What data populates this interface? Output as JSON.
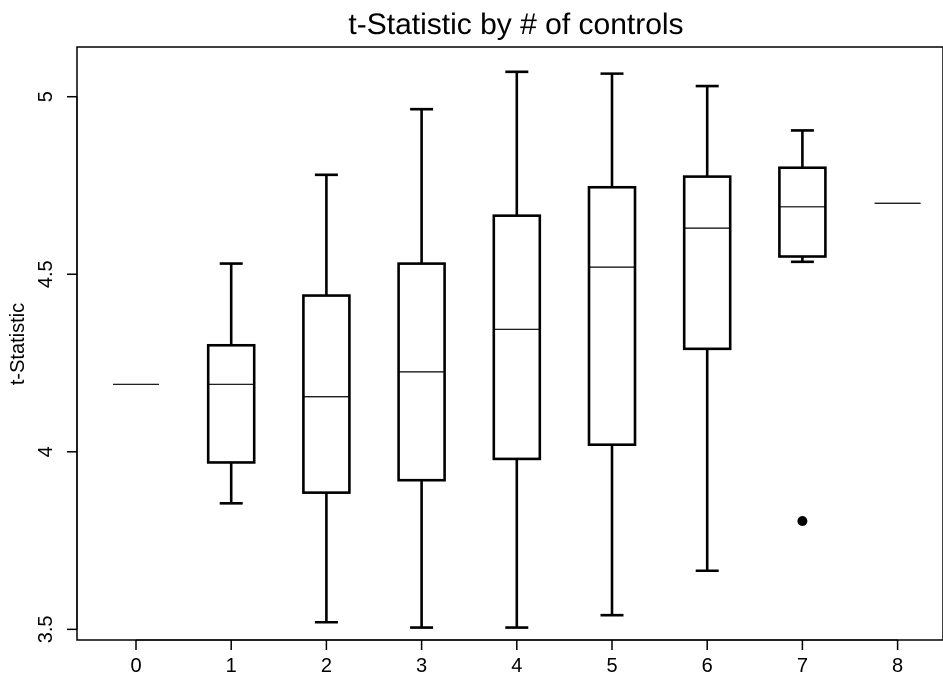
{
  "chart_data": {
    "type": "box",
    "title": "t-Statistic by # of controls",
    "xlabel": "",
    "ylabel": "t-Statistic",
    "categories": [
      "0",
      "1",
      "2",
      "3",
      "4",
      "5",
      "6",
      "7",
      "8"
    ],
    "ylim": [
      3.47,
      5.14
    ],
    "yticks": [
      3.5,
      4,
      4.5,
      5
    ],
    "ytick_labels": [
      "3.5",
      "4",
      "4.5",
      "5"
    ],
    "grid": false,
    "legend": "none",
    "boxes": [
      {
        "category": "0",
        "min": 4.19,
        "q1": 4.19,
        "median": 4.19,
        "q3": 4.19,
        "max": 4.19,
        "outliers": []
      },
      {
        "category": "1",
        "min": 3.855,
        "q1": 3.97,
        "median": 4.19,
        "q3": 4.3,
        "max": 4.53,
        "outliers": []
      },
      {
        "category": "2",
        "min": 3.52,
        "q1": 3.885,
        "median": 4.155,
        "q3": 4.44,
        "max": 4.78,
        "outliers": []
      },
      {
        "category": "3",
        "min": 3.505,
        "q1": 3.92,
        "median": 4.225,
        "q3": 4.53,
        "max": 4.965,
        "outliers": []
      },
      {
        "category": "4",
        "min": 3.505,
        "q1": 3.98,
        "median": 4.345,
        "q3": 4.665,
        "max": 5.07,
        "outliers": []
      },
      {
        "category": "5",
        "min": 3.54,
        "q1": 4.02,
        "median": 4.52,
        "q3": 4.745,
        "max": 5.065,
        "outliers": []
      },
      {
        "category": "6",
        "min": 3.665,
        "q1": 4.29,
        "median": 4.63,
        "q3": 4.775,
        "max": 5.03,
        "outliers": []
      },
      {
        "category": "7",
        "min": 4.535,
        "q1": 4.55,
        "median": 4.69,
        "q3": 4.8,
        "max": 4.905,
        "outliers": [
          3.805
        ]
      },
      {
        "category": "8",
        "min": 4.7,
        "q1": 4.7,
        "median": 4.7,
        "q3": 4.7,
        "max": 4.7,
        "outliers": []
      }
    ]
  }
}
